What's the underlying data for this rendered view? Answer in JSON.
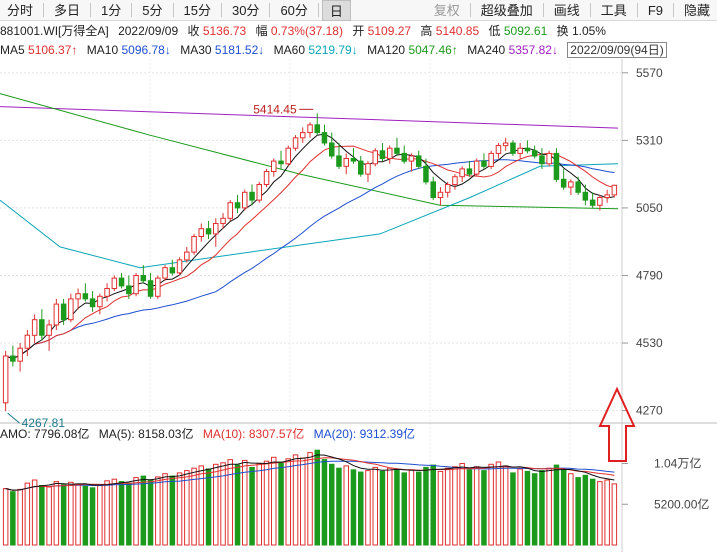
{
  "toolbar": {
    "periods": [
      "分时",
      "多日",
      "1分",
      "5分",
      "15分",
      "30分",
      "60分",
      "日"
    ],
    "active_period": "日",
    "right_items": [
      "复权",
      "超级叠加",
      "画线",
      "工具",
      "F9",
      "隐藏"
    ]
  },
  "info": {
    "code_name": "881001.WI[万得全A]",
    "date": "2022/09/09",
    "close_label": "收",
    "close": "5136.73",
    "change_label": "幅",
    "change": "0.73%(37.18)",
    "open_label": "开",
    "open": "5109.27",
    "high_label": "高",
    "high": "5140.85",
    "low_label": "低",
    "low": "5092.61",
    "turnover_label": "换",
    "turnover": "1.05%"
  },
  "ma_legend": {
    "ma5_label": "MA5",
    "ma5": "5106.37↑",
    "ma10_label": "MA10",
    "ma10": "5096.78↓",
    "ma30_label": "MA30",
    "ma30": "5181.52↓",
    "ma60_label": "MA60",
    "ma60": "5219.79↓",
    "ma120_label": "MA120",
    "ma120": "5047.46↑",
    "ma240_label": "MA240",
    "ma240": "5357.82↓",
    "date_box": "2022/09/09(94日)"
  },
  "colors": {
    "up": "#e03030",
    "down": "#1c9a1c",
    "ma5": "#111111",
    "ma10": "#e03030",
    "ma30": "#1f4fd0",
    "ma60": "#0aa6b8",
    "ma120": "#1c9a1c",
    "ma240": "#a020c0",
    "arrow": "#e02020"
  },
  "chart_data": {
    "type": "candlestick",
    "price_axis_ticks": [
      "5570",
      "5310",
      "5050",
      "4790",
      "4530",
      "4270"
    ],
    "price_range": [
      4230,
      5600
    ],
    "high_marker": "5414.45",
    "low_marker": "4267.81",
    "volume_axis_ticks": [
      "1.04万亿",
      "5200.00亿"
    ],
    "volume_range": [
      0,
      12000
    ],
    "amo": {
      "amo_label": "AMO:",
      "amo": "7796.08亿",
      "ma5_label": "MA(5):",
      "ma5": "8158.03亿",
      "ma10_label": "MA(10):",
      "ma10": "8307.57亿",
      "ma20_label": "MA(20):",
      "ma20": "9312.39亿"
    },
    "candles": [
      [
        4300,
        4500,
        4268,
        4480
      ],
      [
        4480,
        4520,
        4440,
        4460
      ],
      [
        4460,
        4530,
        4420,
        4510
      ],
      [
        4510,
        4580,
        4480,
        4560
      ],
      [
        4560,
        4640,
        4530,
        4620
      ],
      [
        4620,
        4660,
        4540,
        4560
      ],
      [
        4560,
        4620,
        4500,
        4600
      ],
      [
        4600,
        4700,
        4580,
        4680
      ],
      [
        4680,
        4700,
        4600,
        4620
      ],
      [
        4620,
        4720,
        4610,
        4700
      ],
      [
        4700,
        4740,
        4660,
        4720
      ],
      [
        4720,
        4760,
        4690,
        4700
      ],
      [
        4700,
        4730,
        4650,
        4670
      ],
      [
        4670,
        4720,
        4640,
        4710
      ],
      [
        4710,
        4760,
        4690,
        4740
      ],
      [
        4740,
        4790,
        4730,
        4780
      ],
      [
        4780,
        4800,
        4740,
        4750
      ],
      [
        4750,
        4790,
        4700,
        4720
      ],
      [
        4720,
        4800,
        4710,
        4790
      ],
      [
        4790,
        4830,
        4760,
        4770
      ],
      [
        4770,
        4800,
        4700,
        4710
      ],
      [
        4710,
        4790,
        4700,
        4780
      ],
      [
        4780,
        4830,
        4770,
        4820
      ],
      [
        4820,
        4850,
        4790,
        4800
      ],
      [
        4800,
        4860,
        4790,
        4850
      ],
      [
        4850,
        4900,
        4840,
        4880
      ],
      [
        4880,
        4950,
        4870,
        4940
      ],
      [
        4940,
        4990,
        4920,
        4970
      ],
      [
        4970,
        5000,
        4930,
        4950
      ],
      [
        4950,
        5010,
        4900,
        4990
      ],
      [
        4990,
        5030,
        4970,
        5010
      ],
      [
        5010,
        5080,
        5000,
        5070
      ],
      [
        5070,
        5100,
        5030,
        5050
      ],
      [
        5050,
        5120,
        5040,
        5110
      ],
      [
        5110,
        5140,
        5060,
        5080
      ],
      [
        5080,
        5150,
        5070,
        5140
      ],
      [
        5140,
        5200,
        5130,
        5190
      ],
      [
        5190,
        5240,
        5170,
        5230
      ],
      [
        5230,
        5270,
        5200,
        5220
      ],
      [
        5220,
        5290,
        5210,
        5280
      ],
      [
        5280,
        5330,
        5270,
        5320
      ],
      [
        5320,
        5360,
        5300,
        5340
      ],
      [
        5340,
        5380,
        5320,
        5370
      ],
      [
        5370,
        5414,
        5330,
        5340
      ],
      [
        5340,
        5370,
        5290,
        5300
      ],
      [
        5300,
        5340,
        5240,
        5250
      ],
      [
        5250,
        5300,
        5200,
        5210
      ],
      [
        5210,
        5260,
        5180,
        5240
      ],
      [
        5240,
        5280,
        5220,
        5230
      ],
      [
        5230,
        5250,
        5170,
        5180
      ],
      [
        5180,
        5230,
        5150,
        5220
      ],
      [
        5220,
        5280,
        5210,
        5270
      ],
      [
        5270,
        5300,
        5230,
        5240
      ],
      [
        5240,
        5290,
        5220,
        5280
      ],
      [
        5280,
        5320,
        5250,
        5260
      ],
      [
        5260,
        5290,
        5220,
        5230
      ],
      [
        5230,
        5260,
        5190,
        5250
      ],
      [
        5250,
        5270,
        5200,
        5210
      ],
      [
        5210,
        5240,
        5140,
        5150
      ],
      [
        5150,
        5170,
        5080,
        5090
      ],
      [
        5090,
        5130,
        5060,
        5110
      ],
      [
        5110,
        5150,
        5090,
        5140
      ],
      [
        5140,
        5180,
        5120,
        5170
      ],
      [
        5170,
        5210,
        5150,
        5200
      ],
      [
        5200,
        5230,
        5170,
        5180
      ],
      [
        5180,
        5240,
        5170,
        5230
      ],
      [
        5230,
        5260,
        5200,
        5210
      ],
      [
        5210,
        5270,
        5200,
        5260
      ],
      [
        5260,
        5300,
        5240,
        5290
      ],
      [
        5290,
        5320,
        5270,
        5300
      ],
      [
        5300,
        5310,
        5250,
        5260
      ],
      [
        5260,
        5300,
        5240,
        5280
      ],
      [
        5280,
        5310,
        5260,
        5270
      ],
      [
        5270,
        5290,
        5240,
        5250
      ],
      [
        5250,
        5280,
        5200,
        5220
      ],
      [
        5220,
        5270,
        5210,
        5260
      ],
      [
        5260,
        5280,
        5150,
        5160
      ],
      [
        5160,
        5200,
        5120,
        5130
      ],
      [
        5130,
        5160,
        5100,
        5150
      ],
      [
        5150,
        5170,
        5100,
        5110
      ],
      [
        5110,
        5140,
        5060,
        5080
      ],
      [
        5080,
        5110,
        5050,
        5060
      ],
      [
        5060,
        5100,
        5040,
        5090
      ],
      [
        5090,
        5120,
        5070,
        5100
      ],
      [
        5100,
        5140,
        5090,
        5137
      ]
    ],
    "volumes": [
      7200,
      6800,
      7100,
      7900,
      8300,
      7600,
      7400,
      8100,
      7700,
      8000,
      7800,
      7500,
      7300,
      7700,
      8200,
      8400,
      8100,
      7900,
      8600,
      8800,
      8300,
      8700,
      9100,
      8800,
      9200,
      9500,
      9800,
      10100,
      9700,
      10300,
      10500,
      10900,
      10200,
      10800,
      9900,
      10400,
      10700,
      11200,
      10600,
      11000,
      11500,
      11100,
      11800,
      12100,
      10900,
      10300,
      9800,
      10100,
      9600,
      9300,
      9500,
      9900,
      9400,
      9800,
      9700,
      9200,
      9600,
      9300,
      9900,
      10200,
      9400,
      9800,
      10000,
      10400,
      9600,
      10000,
      9500,
      10300,
      10600,
      10100,
      9200,
      9700,
      9400,
      9100,
      9500,
      9800,
      10200,
      9600,
      9100,
      8600,
      8900,
      8400,
      8100,
      8300,
      7796
    ]
  }
}
